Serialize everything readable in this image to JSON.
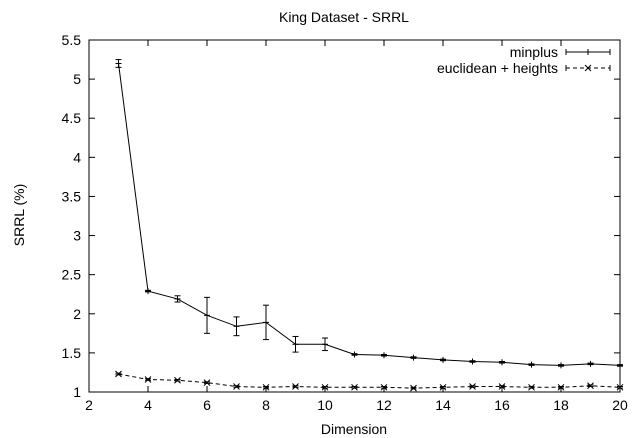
{
  "chart_data": {
    "type": "line",
    "title": "King Dataset - SRRL",
    "xlabel": "Dimension",
    "ylabel": "SRRL (%)",
    "xlim": [
      2,
      20
    ],
    "ylim": [
      1,
      5.5
    ],
    "xticks": [
      2,
      4,
      6,
      8,
      10,
      12,
      14,
      16,
      18,
      20
    ],
    "yticks": [
      1,
      1.5,
      2,
      2.5,
      3,
      3.5,
      4,
      4.5,
      5,
      5.5
    ],
    "xtick_labels": [
      "2",
      "4",
      "6",
      "8",
      "10",
      "12",
      "14",
      "16",
      "18",
      "20"
    ],
    "ytick_labels": [
      "1",
      "1.5",
      "2",
      "2.5",
      "3",
      "3.5",
      "4",
      "4.5",
      "5",
      "5.5"
    ],
    "grid": false,
    "legend_position": "top-right",
    "series": [
      {
        "name": "minplus",
        "style": "solid",
        "marker": "plus",
        "x": [
          3,
          4,
          5,
          6,
          7,
          8,
          9,
          10,
          11,
          12,
          13,
          14,
          15,
          16,
          17,
          18,
          19,
          20
        ],
        "y": [
          5.2,
          2.29,
          2.19,
          1.98,
          1.84,
          1.89,
          1.61,
          1.61,
          1.48,
          1.47,
          1.44,
          1.41,
          1.39,
          1.38,
          1.35,
          1.34,
          1.36,
          1.34
        ],
        "err": [
          0.05,
          0.01,
          0.04,
          0.23,
          0.12,
          0.22,
          0.1,
          0.08,
          0.01,
          0.01,
          0.01,
          0.01,
          0.01,
          0.01,
          0.01,
          0.01,
          0.01,
          0.01
        ]
      },
      {
        "name": "euclidean + heights",
        "style": "dashed",
        "marker": "cross",
        "x": [
          3,
          4,
          5,
          6,
          7,
          8,
          9,
          10,
          11,
          12,
          13,
          14,
          15,
          16,
          17,
          18,
          19,
          20
        ],
        "y": [
          1.23,
          1.16,
          1.15,
          1.12,
          1.07,
          1.06,
          1.07,
          1.06,
          1.06,
          1.06,
          1.05,
          1.06,
          1.07,
          1.07,
          1.06,
          1.06,
          1.08,
          1.06
        ],
        "err": [
          0.01,
          0.01,
          0.01,
          0.01,
          0.01,
          0.01,
          0.01,
          0.01,
          0.01,
          0.01,
          0.01,
          0.01,
          0.01,
          0.01,
          0.01,
          0.01,
          0.01,
          0.01
        ]
      }
    ]
  }
}
